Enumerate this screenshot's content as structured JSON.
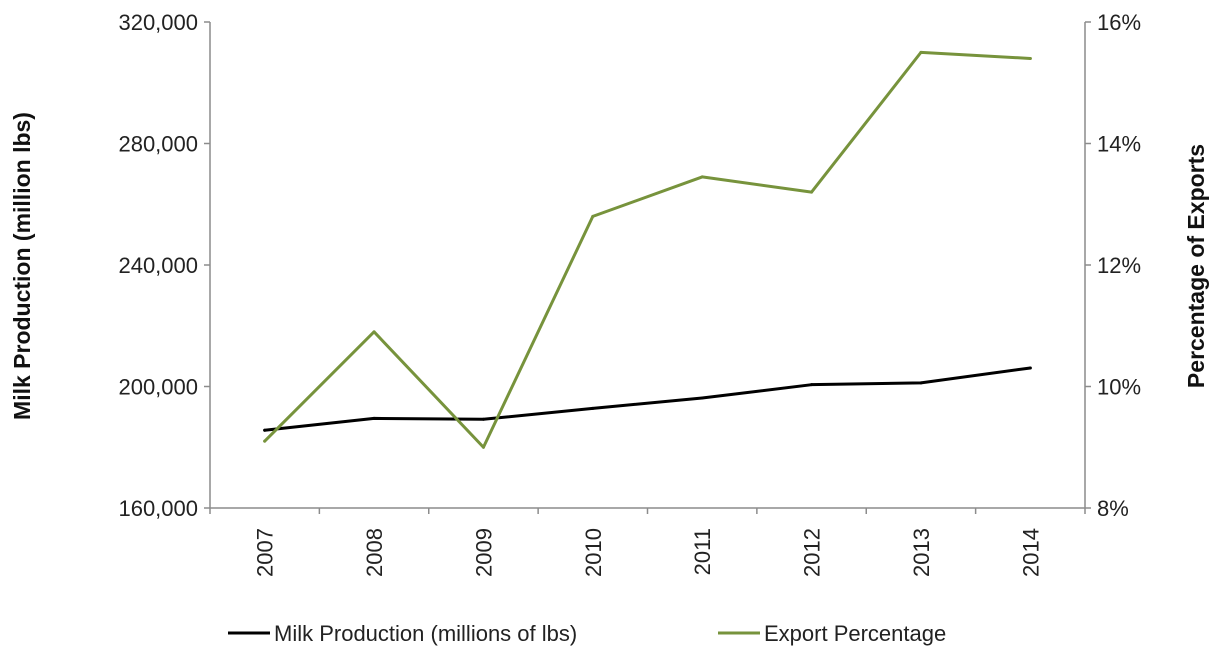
{
  "chart_data": {
    "type": "line",
    "x": [
      "2007",
      "2008",
      "2009",
      "2010",
      "2011",
      "2012",
      "2013",
      "2014"
    ],
    "series": [
      {
        "name": "Milk Production (millions of lbs)",
        "axis": "left",
        "color": "#000000",
        "values": [
          185600,
          189500,
          189200,
          192800,
          196200,
          200600,
          201200,
          206100
        ]
      },
      {
        "name": "Export Percentage",
        "axis": "right",
        "color": "#77933c",
        "values": [
          9.1,
          10.9,
          9.0,
          12.8,
          13.45,
          13.2,
          15.5,
          15.4
        ]
      }
    ],
    "y_left": {
      "label": "Milk Production (million lbs)",
      "lim": [
        160000,
        320000
      ],
      "ticks": [
        160000,
        200000,
        240000,
        280000,
        320000
      ],
      "tick_labels": [
        "160,000",
        "200,000",
        "240,000",
        "280,000",
        "320,000"
      ]
    },
    "y_right": {
      "label": "Percentage of Exports",
      "lim": [
        8,
        16
      ],
      "ticks": [
        8,
        10,
        12,
        14,
        16
      ],
      "tick_labels": [
        "8%",
        "10%",
        "12%",
        "14%",
        "16%"
      ]
    },
    "grid": false,
    "legend_position": "bottom"
  }
}
